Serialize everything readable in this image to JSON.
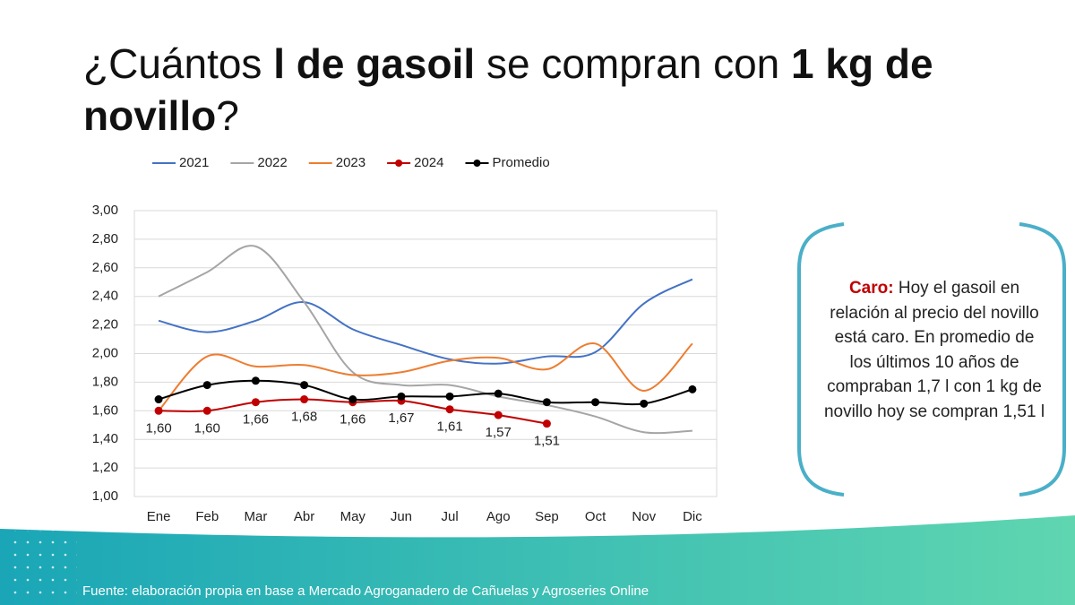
{
  "title_parts": [
    {
      "text": "¿Cuántos ",
      "bold": false
    },
    {
      "text": "l de gasoil",
      "bold": true
    },
    {
      "text": " se compran con ",
      "bold": false
    },
    {
      "text": "1 kg",
      "bold": true
    },
    {
      "text": " de novillo",
      "bold": true
    },
    {
      "text": "?",
      "bold": false
    }
  ],
  "chart_data": {
    "type": "line",
    "categories": [
      "Ene",
      "Feb",
      "Mar",
      "Abr",
      "May",
      "Jun",
      "Jul",
      "Ago",
      "Sep",
      "Oct",
      "Nov",
      "Dic"
    ],
    "ylim": [
      1,
      3
    ],
    "yticks": [
      {
        "value": 1,
        "label": "1,00"
      },
      {
        "value": 1.2,
        "label": "1,20"
      },
      {
        "value": 1.4,
        "label": "1,40"
      },
      {
        "value": 1.6,
        "label": "1,60"
      },
      {
        "value": 1.8,
        "label": "1,80"
      },
      {
        "value": 2,
        "label": "2,00"
      },
      {
        "value": 2.2,
        "label": "2,20"
      },
      {
        "value": 2.4,
        "label": "2,40"
      },
      {
        "value": 2.6,
        "label": "2,60"
      },
      {
        "value": 2.8,
        "label": "2,80"
      },
      {
        "value": 3,
        "label": "3,00"
      }
    ],
    "grid": true,
    "legend": "top",
    "series": [
      {
        "name": "2021",
        "color": "#4472c4",
        "markers": false,
        "values": [
          2.23,
          2.15,
          2.23,
          2.36,
          2.17,
          2.06,
          1.96,
          1.93,
          1.98,
          2.01,
          2.35,
          2.52
        ]
      },
      {
        "name": "2022",
        "color": "#a5a5a5",
        "markers": false,
        "values": [
          2.4,
          2.57,
          2.75,
          2.36,
          1.87,
          1.78,
          1.78,
          1.7,
          1.64,
          1.56,
          1.45,
          1.46
        ]
      },
      {
        "name": "2023",
        "color": "#ed7d31",
        "markers": false,
        "values": [
          1.6,
          1.98,
          1.91,
          1.92,
          1.85,
          1.87,
          1.95,
          1.97,
          1.89,
          2.07,
          1.74,
          2.07
        ]
      },
      {
        "name": "2024",
        "color": "#c00000",
        "markers": true,
        "values": [
          1.6,
          1.6,
          1.66,
          1.68,
          1.66,
          1.67,
          1.61,
          1.57,
          1.51,
          null,
          null,
          null
        ],
        "value_labels": [
          "1,60",
          "1,60",
          "1,66",
          "1,68",
          "1,66",
          "1,67",
          "1,61",
          "1,57",
          "1,51",
          null,
          null,
          null
        ]
      },
      {
        "name": "Promedio",
        "color": "#000000",
        "markers": true,
        "values": [
          1.68,
          1.78,
          1.81,
          1.78,
          1.68,
          1.7,
          1.7,
          1.72,
          1.66,
          1.66,
          1.65,
          1.75
        ]
      }
    ]
  },
  "note": {
    "label": "Caro:",
    "text": "Hoy el gasoil en relación al precio del novillo está caro. En promedio de los últimos 10 años de compraban 1,7 l con 1 kg de novillo hoy se compran 1,51 l"
  },
  "source": "Fuente: elaboración propia en base a Mercado Agroganadero de Cañuelas y Agroseries Online"
}
